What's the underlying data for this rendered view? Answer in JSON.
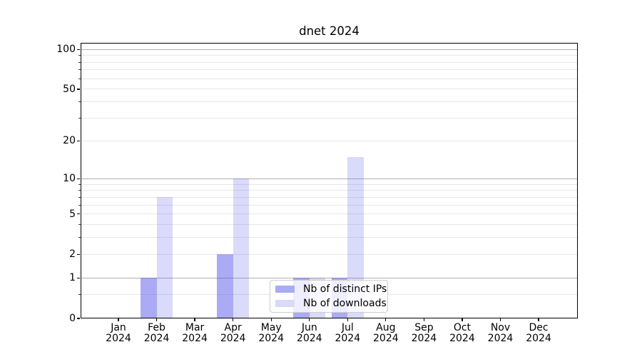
{
  "title": "dnet 2024",
  "chart_data": {
    "type": "bar",
    "title": "dnet 2024",
    "categories": [
      "Jan 2024",
      "Feb 2024",
      "Mar 2024",
      "Apr 2024",
      "May 2024",
      "Jun 2024",
      "Jul 2024",
      "Aug 2024",
      "Sep 2024",
      "Oct 2024",
      "Nov 2024",
      "Dec 2024"
    ],
    "month_names": [
      "Jan",
      "Feb",
      "Mar",
      "Apr",
      "May",
      "Jun",
      "Jul",
      "Aug",
      "Sep",
      "Oct",
      "Nov",
      "Dec"
    ],
    "year_label": "2024",
    "series": [
      {
        "name": "Nb of distinct IPs",
        "values": [
          0,
          1,
          0,
          2,
          0,
          1,
          1,
          0,
          0,
          0,
          0,
          0
        ]
      },
      {
        "name": "Nb of downloads",
        "values": [
          0,
          7,
          0,
          10,
          0,
          1,
          15,
          0,
          0,
          0,
          0,
          0
        ]
      }
    ],
    "yscale": "log-like (position proportional to log10(1+v))",
    "ylim": [
      0,
      112
    ],
    "yticks": [
      100,
      50,
      20,
      10,
      5,
      2,
      1,
      0
    ],
    "ytick_labels": [
      "100",
      "50",
      "20",
      "10",
      "5",
      "2",
      "1",
      "0"
    ],
    "grid_major": [
      1,
      10,
      100
    ],
    "grid_minor": [
      0.5,
      2,
      3,
      4,
      5,
      6,
      7,
      8,
      9,
      20,
      30,
      40,
      50,
      60,
      70,
      80,
      90
    ],
    "grid": true,
    "legend_position": "lower center, inside axes"
  },
  "colors": {
    "distinct_ips_bar": "rgba(85,85,235,0.5)",
    "distinct_ips_solid": "#aaaaf5",
    "downloads_bar": "rgba(85,85,235,0.22)",
    "downloads_solid": "#d9d9f8",
    "grid_major": "#b0b0b0",
    "grid_minor": "#e7e7e7",
    "spine": "#000000",
    "text": "#000000",
    "legend_border": "#cccccc",
    "legend_background": "rgba(255,255,255,0.8)",
    "background": "#ffffff"
  }
}
